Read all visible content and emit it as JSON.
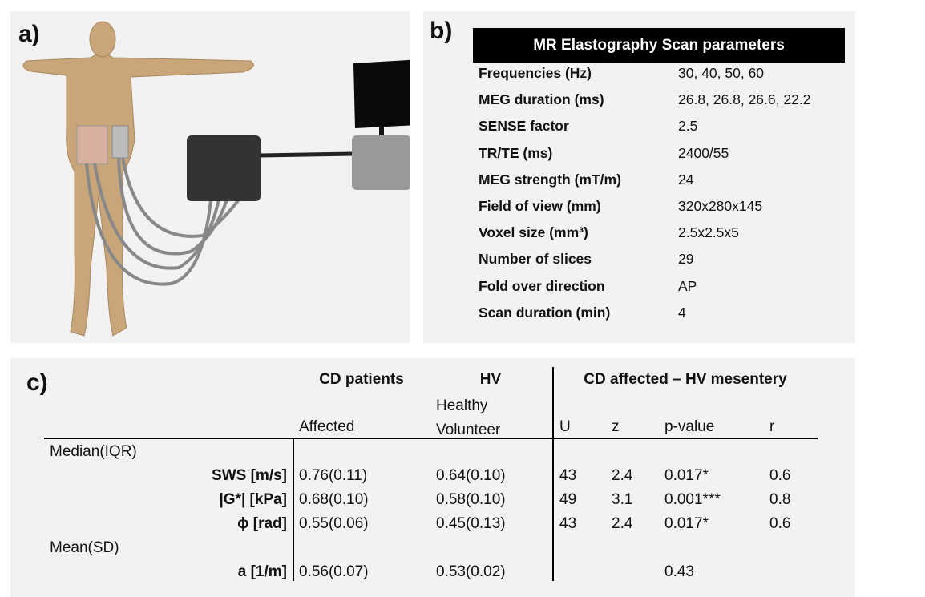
{
  "panel_a": {
    "label": "a)"
  },
  "panel_b": {
    "label": "b)",
    "title": "MR Elastography Scan parameters",
    "rows": [
      [
        "Frequencies (Hz)",
        "30, 40, 50, 60"
      ],
      [
        "MEG duration (ms)",
        "26.8, 26.8, 26.6, 22.2"
      ],
      [
        "SENSE factor",
        "2.5"
      ],
      [
        "TR/TE (ms)",
        "2400/55"
      ],
      [
        "MEG strength (mT/m)",
        "24"
      ],
      [
        "Field of view (mm)",
        "320x280x145"
      ],
      [
        "Voxel size (mm³)",
        "2.5x2.5x5"
      ],
      [
        "Number of slices",
        "29"
      ],
      [
        "Fold over direction",
        "AP"
      ],
      [
        "Scan duration (min)",
        "4"
      ]
    ]
  },
  "panel_c": {
    "label": "c)",
    "group_headers": [
      "CD patients",
      "HV",
      "CD affected – HV mesentery"
    ],
    "column_headers": [
      "Affected",
      "Healthy Volunteer",
      "U",
      "z",
      "p-value",
      "r"
    ],
    "sections": [
      {
        "title": "Median(IQR)",
        "rows": [
          {
            "label": "SWS [m/s]",
            "cells": [
              "0.76(0.11)",
              "0.64(0.10)",
              "43",
              "2.4",
              "0.017*",
              "0.6"
            ]
          },
          {
            "label": "|G*| [kPa]",
            "cells": [
              "0.68(0.10)",
              "0.58(0.10)",
              "49",
              "3.1",
              "0.001***",
              "0.8"
            ]
          },
          {
            "label": "ϕ [rad]",
            "cells": [
              "0.55(0.06)",
              "0.45(0.13)",
              "43",
              "2.4",
              "0.017*",
              "0.6"
            ]
          }
        ]
      },
      {
        "title": "Mean(SD)",
        "rows": [
          {
            "label": "a [1/m]",
            "cells": [
              "0.56(0.07)",
              "0.53(0.02)",
              null,
              null,
              "0.43",
              null
            ]
          }
        ]
      }
    ]
  }
}
